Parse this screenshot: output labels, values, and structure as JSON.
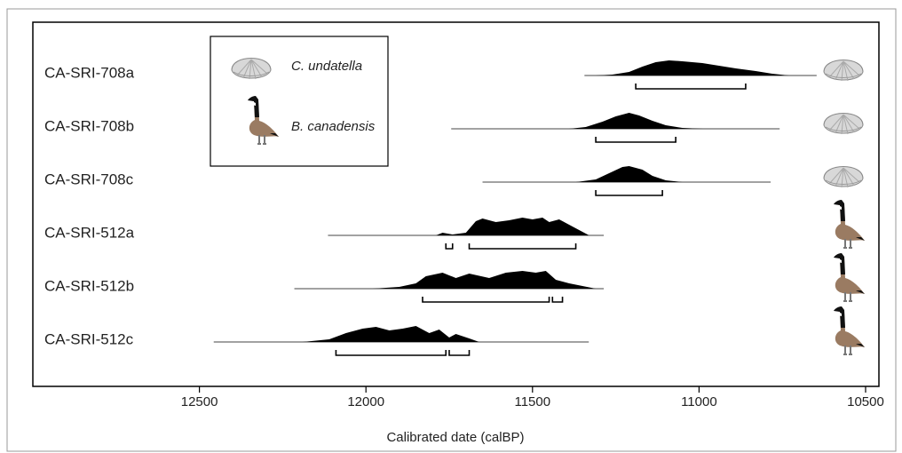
{
  "chart_data": {
    "type": "calibration",
    "x_label": "Calibrated date (calBP)",
    "xlim": [
      13000,
      10460
    ],
    "xticks": [
      12500,
      12000,
      11500,
      11000,
      10500
    ],
    "groups": [
      {
        "name": "C. undatella",
        "samples": [
          {
            "name": "CA-SRI-708a",
            "range": [
              11344,
              10647
            ],
            "density_x": [
              11310,
              11260,
              11210,
              11170,
              11130,
              11090,
              11050,
              10990,
              10940,
              10890,
              10830,
              10780,
              10730
            ],
            "density_h": [
              0,
              1,
              4,
              10,
              15,
              17,
              16,
              14,
              11,
              8,
              5,
              2,
              0
            ],
            "hpd": [
              [
                11190,
                10860
              ]
            ]
          },
          {
            "name": "CA-SRI-708b",
            "range": [
              11744,
              10758
            ],
            "density_x": [
              11390,
              11340,
              11290,
              11250,
              11210,
              11180,
              11140,
              11100,
              11050,
              10990
            ],
            "density_h": [
              0,
              2,
              8,
              14,
              18,
              15,
              9,
              4,
              1,
              0
            ],
            "hpd": [
              [
                11310,
                11070
              ]
            ]
          },
          {
            "name": "CA-SRI-708c",
            "range": [
              11650,
              10785
            ],
            "density_x": [
              11370,
              11310,
              11270,
              11230,
              11210,
              11170,
              11140,
              11100,
              11050
            ],
            "density_h": [
              0,
              3,
              10,
              17,
              18,
              14,
              7,
              2,
              0
            ],
            "hpd": [
              [
                11310,
                11110
              ]
            ]
          }
        ]
      },
      {
        "name": "B. canadensis",
        "samples": [
          {
            "name": "CA-SRI-512a",
            "range": [
              12114,
              11286
            ],
            "density_x": [
              11790,
              11770,
              11740,
              11700,
              11670,
              11650,
              11610,
              11570,
              11530,
              11500,
              11470,
              11450,
              11420,
              11380,
              11330
            ],
            "density_h": [
              0,
              3,
              1,
              3,
              16,
              19,
              15,
              17,
              20,
              18,
              20,
              15,
              18,
              10,
              0
            ],
            "hpd": [
              [
                11760,
                11740
              ],
              [
                11690,
                11370
              ]
            ]
          },
          {
            "name": "CA-SRI-512b",
            "range": [
              12215,
              11286
            ],
            "density_x": [
              11980,
              11900,
              11850,
              11820,
              11770,
              11730,
              11690,
              11630,
              11580,
              11530,
              11490,
              11460,
              11430,
              11390,
              11350,
              11310
            ],
            "density_h": [
              0,
              2,
              6,
              14,
              18,
              12,
              17,
              12,
              18,
              20,
              18,
              20,
              10,
              6,
              3,
              0
            ],
            "hpd": [
              [
                11830,
                11450
              ],
              [
                11440,
                11410
              ]
            ]
          },
          {
            "name": "CA-SRI-512c",
            "range": [
              12457,
              11331
            ],
            "density_x": [
              12190,
              12110,
              12060,
              12010,
              11970,
              11930,
              11890,
              11850,
              11810,
              11780,
              11750,
              11730,
              11690,
              11660
            ],
            "density_h": [
              0,
              3,
              10,
              15,
              17,
              13,
              15,
              18,
              10,
              14,
              5,
              9,
              4,
              0
            ],
            "hpd": [
              [
                12090,
                11760
              ],
              [
                11750,
                11690
              ]
            ]
          }
        ]
      }
    ]
  }
}
